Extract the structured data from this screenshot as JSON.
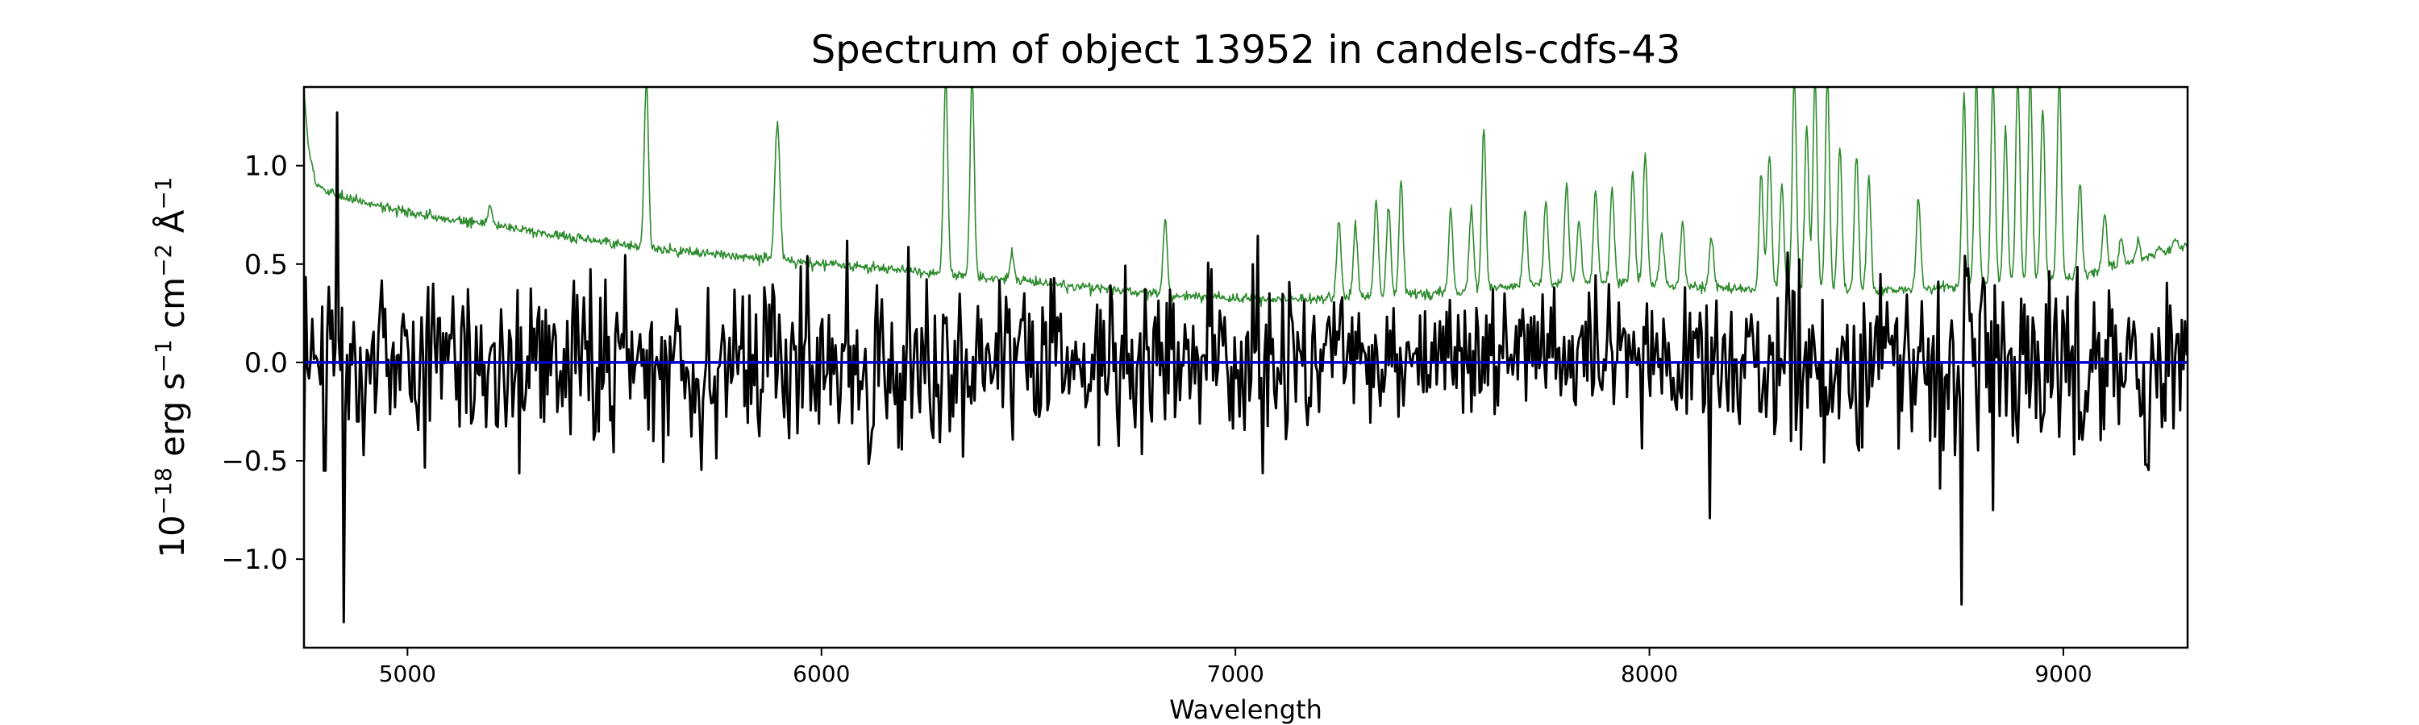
{
  "chart_data": {
    "type": "line",
    "title": "Spectrum of object 13952 in candels-cdfs-43",
    "xlabel": "Wavelength",
    "ylabel_html": "10<tspan baseline-shift='super' font-size='70%'>−18</tspan> erg s<tspan baseline-shift='super' font-size='70%'>−1</tspan> cm<tspan baseline-shift='super' font-size='70%'>−2</tspan> Å<tspan baseline-shift='super' font-size='70%'>−1</tspan>",
    "ylabel_parts": [
      {
        "text": "10",
        "sup": false
      },
      {
        "text": "−18",
        "sup": true
      },
      {
        "text": " erg s",
        "sup": false
      },
      {
        "text": "−1",
        "sup": true
      },
      {
        "text": " cm",
        "sup": false
      },
      {
        "text": "−2",
        "sup": true
      },
      {
        "text": " Å",
        "sup": false
      },
      {
        "text": "−1",
        "sup": true
      }
    ],
    "xlim": [
      4750,
      9300
    ],
    "ylim": [
      -1.45,
      1.4
    ],
    "xticks": [
      5000,
      6000,
      7000,
      8000,
      9000
    ],
    "xtick_labels": [
      "5000",
      "6000",
      "7000",
      "8000",
      "9000"
    ],
    "yticks": [
      -1.0,
      -0.5,
      0.0,
      0.5,
      1.0
    ],
    "ytick_labels": [
      "−1.0",
      "−0.5",
      "0.0",
      "0.5",
      "1.0"
    ],
    "grid": false,
    "series": [
      {
        "role": "error-spectrum",
        "color": "#2e8b2e",
        "baseline": [
          [
            4750,
            1.38
          ],
          [
            4760,
            1.1
          ],
          [
            4780,
            0.9
          ],
          [
            4850,
            0.84
          ],
          [
            5000,
            0.76
          ],
          [
            5500,
            0.6
          ],
          [
            5900,
            0.52
          ],
          [
            6300,
            0.45
          ],
          [
            6650,
            0.38
          ],
          [
            6850,
            0.34
          ],
          [
            7100,
            0.32
          ],
          [
            7500,
            0.35
          ],
          [
            7800,
            0.41
          ],
          [
            8000,
            0.4
          ],
          [
            8250,
            0.37
          ],
          [
            8500,
            0.36
          ],
          [
            8700,
            0.38
          ],
          [
            9000,
            0.42
          ],
          [
            9150,
            0.5
          ],
          [
            9300,
            0.6
          ]
        ],
        "emission_lines": [
          [
            5200,
            0.8
          ],
          [
            5577,
            1.45
          ],
          [
            5890,
            0.88
          ],
          [
            5896,
            1.0
          ],
          [
            6300,
            1.45
          ],
          [
            6364,
            1.45
          ],
          [
            6460,
            0.55
          ],
          [
            6830,
            0.72
          ],
          [
            7250,
            0.73
          ],
          [
            7290,
            0.69
          ],
          [
            7340,
            0.83
          ],
          [
            7370,
            0.8
          ],
          [
            7400,
            0.92
          ],
          [
            7520,
            0.77
          ],
          [
            7570,
            0.79
          ],
          [
            7600,
            1.2
          ],
          [
            7700,
            0.78
          ],
          [
            7750,
            0.82
          ],
          [
            7800,
            0.92
          ],
          [
            7830,
            0.72
          ],
          [
            7870,
            0.87
          ],
          [
            7910,
            0.88
          ],
          [
            7960,
            0.97
          ],
          [
            7990,
            1.06
          ],
          [
            8030,
            0.66
          ],
          [
            8080,
            0.72
          ],
          [
            8150,
            0.63
          ],
          [
            8270,
            0.95
          ],
          [
            8290,
            1.05
          ],
          [
            8320,
            0.9
          ],
          [
            8350,
            1.45
          ],
          [
            8380,
            1.2
          ],
          [
            8400,
            1.45
          ],
          [
            8430,
            1.45
          ],
          [
            8460,
            1.1
          ],
          [
            8500,
            1.05
          ],
          [
            8530,
            0.95
          ],
          [
            8650,
            0.83
          ],
          [
            8760,
            1.35
          ],
          [
            8790,
            1.45
          ],
          [
            8830,
            1.45
          ],
          [
            8860,
            1.2
          ],
          [
            8890,
            1.45
          ],
          [
            8920,
            1.45
          ],
          [
            8950,
            1.3
          ],
          [
            8990,
            1.45
          ],
          [
            9040,
            0.9
          ],
          [
            9100,
            0.75
          ],
          [
            9140,
            0.64
          ],
          [
            9180,
            0.62
          ],
          [
            9230,
            0.58
          ],
          [
            9270,
            0.62
          ]
        ]
      },
      {
        "role": "flux",
        "color": "#000000",
        "step": 4,
        "noise_sigma": 0.22,
        "features": [
          [
            4800,
            -0.55
          ],
          [
            4830,
            1.27
          ],
          [
            4845,
            -1.32
          ],
          [
            4880,
            -0.3
          ],
          [
            8755,
            -1.23
          ],
          [
            8830,
            -0.75
          ],
          [
            9200,
            -0.52
          ]
        ]
      },
      {
        "role": "model",
        "color": "#0000cc",
        "values": [
          [
            4750,
            0.0
          ],
          [
            9300,
            0.0
          ]
        ]
      }
    ]
  }
}
